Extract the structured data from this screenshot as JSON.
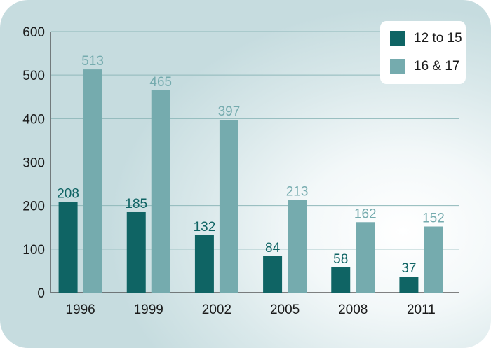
{
  "colors": {
    "series_1": "#0f6464",
    "series_2": "#75abae",
    "grid": "#8fb8ba",
    "axis": "#3a3a3a"
  },
  "chart_data": {
    "type": "bar",
    "title": "",
    "xlabel": "",
    "ylabel": "",
    "categories": [
      "1996",
      "1999",
      "2002",
      "2005",
      "2008",
      "2011"
    ],
    "series": [
      {
        "name": "12 to 15",
        "values": [
          208,
          185,
          132,
          84,
          58,
          37
        ]
      },
      {
        "name": "16 & 17",
        "values": [
          513,
          465,
          397,
          213,
          162,
          152
        ]
      }
    ],
    "ylim": [
      0,
      600
    ],
    "yticks": [
      "0",
      "100",
      "200",
      "300",
      "400",
      "500",
      "600"
    ],
    "grid": true,
    "legend_position": "top-right"
  }
}
